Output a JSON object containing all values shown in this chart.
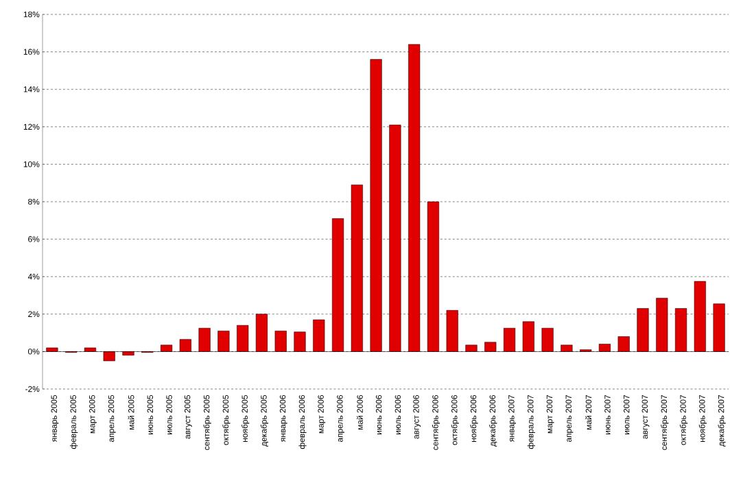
{
  "chart_data": {
    "type": "bar",
    "color": "#e00000",
    "categories": [
      "январь 2005",
      "февраль 2005",
      "март 2005",
      "апрель 2005",
      "май 2005",
      "июнь 2005",
      "июль 2005",
      "август 2005",
      "сентябрь 2005",
      "октябрь 2005",
      "ноябрь 2005",
      "декабрь 2005",
      "январь 2006",
      "февраль 2006",
      "март 2006",
      "апрель 2006",
      "май 2006",
      "июнь 2006",
      "июль 2006",
      "август 2006",
      "сентябрь 2006",
      "октябрь 2006",
      "ноябрь 2006",
      "декабрь 2006",
      "январь 2007",
      "февраль 2007",
      "март 2007",
      "апрель 2007",
      "май 2007",
      "июнь 2007",
      "июль 2007",
      "август 2007",
      "сентябрь 2007",
      "октябрь 2007",
      "ноябрь 2007",
      "декабрь 2007"
    ],
    "values": [
      0.2,
      -0.05,
      0.2,
      -0.5,
      -0.2,
      -0.05,
      0.35,
      0.65,
      1.25,
      1.1,
      1.4,
      2.0,
      1.1,
      1.05,
      1.7,
      7.1,
      8.9,
      15.6,
      12.1,
      16.4,
      8.0,
      2.2,
      0.35,
      0.5,
      1.25,
      1.6,
      1.25,
      0.35,
      0.1,
      0.4,
      0.8,
      2.3,
      2.85,
      2.3,
      3.75,
      2.55
    ],
    "ylim": [
      -2,
      18
    ],
    "yticks": [
      {
        "value": -2,
        "label": "-2%"
      },
      {
        "value": 0,
        "label": "0%"
      },
      {
        "value": 2,
        "label": "2%"
      },
      {
        "value": 4,
        "label": "4%"
      },
      {
        "value": 6,
        "label": "6%"
      },
      {
        "value": 8,
        "label": "8%"
      },
      {
        "value": 10,
        "label": "10%"
      },
      {
        "value": 12,
        "label": "12%"
      },
      {
        "value": 14,
        "label": "14%"
      },
      {
        "value": 16,
        "label": "16%"
      },
      {
        "value": 18,
        "label": "18%"
      }
    ],
    "grid": "y"
  }
}
